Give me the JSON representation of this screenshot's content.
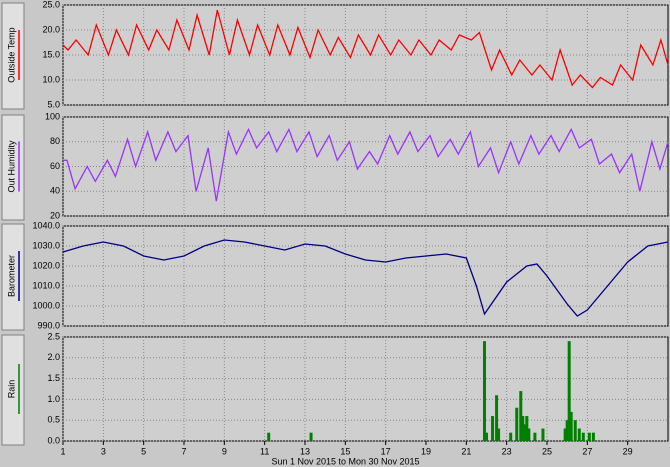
{
  "chart_data": [
    {
      "type": "line",
      "ylabel": "Outside Temp",
      "color": "#ff0000",
      "x": [
        1,
        1.25,
        1.65,
        2.25,
        2.65,
        3.25,
        3.65,
        4.25,
        4.65,
        5.25,
        5.65,
        6.25,
        6.65,
        7.25,
        7.65,
        8.25,
        8.65,
        9.25,
        9.65,
        10.25,
        10.65,
        11.25,
        11.65,
        12.25,
        12.65,
        13.25,
        13.65,
        14.25,
        14.65,
        15.25,
        15.65,
        16.25,
        16.65,
        17.25,
        17.65,
        18.25,
        18.65,
        19.25,
        19.65,
        20.25,
        20.65,
        21.25,
        21.65,
        22.25,
        22.65,
        23.25,
        23.65,
        24.25,
        24.65,
        25.25,
        25.65,
        26.25,
        26.65,
        27.25,
        27.65,
        28.25,
        28.65,
        29.25,
        29.65,
        30.25,
        30.65,
        31
      ],
      "values": [
        17,
        16,
        18,
        15,
        21,
        15,
        20,
        15,
        21,
        16,
        20,
        16,
        22,
        16,
        23,
        15,
        24,
        15,
        22,
        15,
        21,
        15,
        21,
        15,
        20.5,
        14.5,
        20,
        15,
        18.5,
        14.5,
        19,
        15,
        19,
        15,
        18,
        15,
        18,
        15,
        18,
        16,
        19,
        18,
        19.5,
        12,
        16,
        11,
        14,
        11,
        13,
        10,
        16,
        9,
        11,
        8.5,
        10.5,
        9,
        13,
        10,
        17,
        13,
        18,
        13
      ],
      "ylim": [
        5,
        25
      ],
      "yticks": [
        {
          "value": 5,
          "label": "5.0"
        },
        {
          "value": 10,
          "label": "10.0"
        },
        {
          "value": 15,
          "label": "15.0"
        },
        {
          "value": 20,
          "label": "20.0"
        },
        {
          "value": 25,
          "label": "25.0"
        }
      ],
      "xlim": [
        1,
        31
      ],
      "xticks": [
        1,
        3,
        5,
        7,
        9,
        11,
        13,
        15,
        17,
        19,
        21,
        23,
        25,
        27,
        29
      ],
      "grid": true
    },
    {
      "type": "line",
      "ylabel": "Out Humidity",
      "color": "#9933ff",
      "x": [
        1,
        1.2,
        1.6,
        2.2,
        2.6,
        3.2,
        3.6,
        4.2,
        4.6,
        5.2,
        5.6,
        6.2,
        6.6,
        7.2,
        7.6,
        8.2,
        8.6,
        9.2,
        9.6,
        10.2,
        10.6,
        11.2,
        11.6,
        12.2,
        12.6,
        13.2,
        13.6,
        14.2,
        14.6,
        15.2,
        15.6,
        16.2,
        16.6,
        17.2,
        17.6,
        18.2,
        18.6,
        19.2,
        19.6,
        20.2,
        20.6,
        21.2,
        21.6,
        22.2,
        22.6,
        23.2,
        23.6,
        24.2,
        24.6,
        25.2,
        25.6,
        26.2,
        26.6,
        27.2,
        27.6,
        28.2,
        28.6,
        29.2,
        29.6,
        30.2,
        30.6,
        31
      ],
      "values": [
        65,
        65,
        42,
        60,
        48,
        65,
        52,
        82,
        60,
        88,
        65,
        88,
        72,
        85,
        40,
        75,
        32,
        88,
        70,
        90,
        75,
        88,
        72,
        90,
        72,
        88,
        68,
        85,
        65,
        80,
        58,
        72,
        62,
        85,
        70,
        88,
        72,
        85,
        68,
        82,
        70,
        88,
        60,
        75,
        55,
        80,
        62,
        85,
        70,
        85,
        72,
        90,
        75,
        82,
        62,
        70,
        55,
        70,
        40,
        80,
        58,
        80
      ],
      "ylim": [
        20,
        100
      ],
      "yticks": [
        20,
        40,
        60,
        80,
        100
      ],
      "xlim": [
        1,
        31
      ],
      "xticks": [
        1,
        3,
        5,
        7,
        9,
        11,
        13,
        15,
        17,
        19,
        21,
        23,
        25,
        27,
        29
      ],
      "grid": true
    },
    {
      "type": "line",
      "ylabel": "Barometer",
      "color": "#000080",
      "x": [
        1,
        2,
        3,
        4,
        5,
        6,
        7,
        8,
        9,
        10,
        11,
        12,
        13,
        14,
        15,
        16,
        17,
        18,
        19,
        20,
        21,
        21.5,
        21.9,
        23,
        24,
        24.5,
        25,
        26,
        26.5,
        27,
        28,
        29,
        30,
        31
      ],
      "values": [
        1027,
        1030,
        1032,
        1030,
        1025,
        1023,
        1025,
        1030,
        1033,
        1032,
        1030,
        1028,
        1031,
        1030,
        1026,
        1023,
        1022,
        1024,
        1025,
        1026,
        1024,
        1010,
        996,
        1012,
        1020,
        1021,
        1015,
        1001,
        995,
        998,
        1010,
        1022,
        1030,
        1032
      ],
      "ylim": [
        990,
        1040
      ],
      "yticks": [
        {
          "value": 990,
          "label": "990.0"
        },
        {
          "value": 1000,
          "label": "1000.0"
        },
        {
          "value": 1010,
          "label": "1010.0"
        },
        {
          "value": 1020,
          "label": "1020.0"
        },
        {
          "value": 1030,
          "label": "1030.0"
        },
        {
          "value": 1040,
          "label": "1040.0"
        }
      ],
      "xlim": [
        1,
        31
      ],
      "xticks": [
        1,
        3,
        5,
        7,
        9,
        11,
        13,
        15,
        17,
        19,
        21,
        23,
        25,
        27,
        29
      ],
      "grid": true
    },
    {
      "type": "bar",
      "ylabel": "Rain",
      "color": "#008000",
      "x": [
        11.2,
        13.3,
        21.9,
        22.0,
        22.3,
        22.5,
        22.6,
        23.2,
        23.5,
        23.7,
        23.8,
        23.9,
        24.0,
        24.1,
        24.4,
        24.8,
        25.9,
        26.0,
        26.1,
        26.2,
        26.4,
        26.6,
        26.8,
        27.1,
        27.3
      ],
      "values": [
        0.2,
        0.2,
        2.4,
        0.2,
        0.6,
        1.1,
        0.3,
        0.2,
        0.8,
        1.2,
        0.6,
        0.4,
        0.6,
        0.3,
        0.2,
        0.3,
        0.3,
        0.5,
        2.4,
        0.7,
        0.5,
        0.3,
        0.2,
        0.2,
        0.2
      ],
      "ylim": [
        0,
        2.5
      ],
      "yticks": [
        {
          "value": 0,
          "label": "0.0"
        },
        {
          "value": 0.5,
          "label": "0.5"
        },
        {
          "value": 1,
          "label": "1.0"
        },
        {
          "value": 1.5,
          "label": "1.5"
        },
        {
          "value": 2,
          "label": "2.0"
        },
        {
          "value": 2.5,
          "label": "2.5"
        }
      ],
      "xlim": [
        1,
        31
      ],
      "xticks": [
        1,
        3,
        5,
        7,
        9,
        11,
        13,
        15,
        17,
        19,
        21,
        23,
        25,
        27,
        29
      ],
      "grid": true,
      "xlabel": "Sun 1 Nov 2015  to Mon 30 Nov 2015"
    }
  ]
}
